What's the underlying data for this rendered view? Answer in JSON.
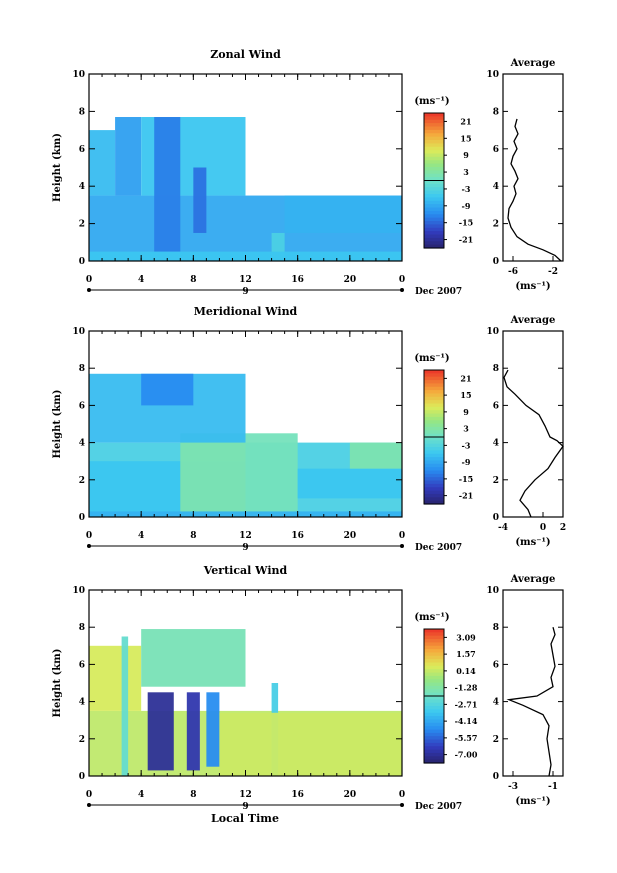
{
  "figure": {
    "local_time_label": "Local Time",
    "date_label": "Dec 2007",
    "day_label": "9"
  },
  "chart_data": [
    {
      "type": "heatmap",
      "title": "Zonal Wind",
      "ylabel": "Height (km)",
      "xlabel": "Local Time",
      "xlim": [
        0,
        24
      ],
      "ylim": [
        0,
        10
      ],
      "xticks": [
        "0",
        "4",
        "8",
        "12",
        "16",
        "20",
        "0"
      ],
      "yticks": [
        "0",
        "2",
        "4",
        "6",
        "8",
        "10"
      ],
      "colorbar": {
        "unit": "(ms⁻¹)",
        "ticks": [
          "21",
          "15",
          "9",
          "3",
          "-3",
          "-9",
          "-15",
          "-21"
        ],
        "range": [
          -24,
          24
        ]
      },
      "cells": [
        {
          "x0": 0,
          "x1": 24,
          "y0": 0,
          "y1": 3.5,
          "v": -9
        },
        {
          "x0": 0,
          "x1": 2,
          "y0": 3.5,
          "y1": 7,
          "v": -7
        },
        {
          "x0": 2,
          "x1": 4,
          "y0": 3.5,
          "y1": 7.7,
          "v": -10
        },
        {
          "x0": 4,
          "x1": 12,
          "y0": 3.5,
          "y1": 7.7,
          "v": -6
        },
        {
          "x0": 5,
          "x1": 7,
          "y0": 0.5,
          "y1": 7.7,
          "v": -13
        },
        {
          "x0": 8,
          "x1": 9,
          "y0": 1.5,
          "y1": 5,
          "v": -14
        },
        {
          "x0": 14,
          "x1": 15,
          "y0": 0,
          "y1": 1.5,
          "v": -4
        },
        {
          "x0": 15,
          "x1": 24,
          "y0": 1.5,
          "y1": 3.5,
          "v": -8
        },
        {
          "x0": 0,
          "x1": 24,
          "y0": 0,
          "y1": 0.5,
          "v": -6
        }
      ],
      "average": {
        "title": "Average",
        "xlabel": "(ms⁻¹)",
        "xlim": [
          -7,
          -1
        ],
        "xticks": [
          "-6",
          "-2"
        ],
        "yticks": [
          "0",
          "2",
          "4",
          "6",
          "8",
          "10"
        ],
        "points": [
          [
            -1.2,
            0
          ],
          [
            -1.8,
            0.3
          ],
          [
            -3.0,
            0.6
          ],
          [
            -4.5,
            0.9
          ],
          [
            -5.6,
            1.3
          ],
          [
            -6.2,
            1.8
          ],
          [
            -6.5,
            2.3
          ],
          [
            -6.4,
            2.8
          ],
          [
            -6.0,
            3.2
          ],
          [
            -5.7,
            3.6
          ],
          [
            -5.9,
            4.0
          ],
          [
            -5.5,
            4.4
          ],
          [
            -5.8,
            4.8
          ],
          [
            -6.2,
            5.2
          ],
          [
            -6.0,
            5.6
          ],
          [
            -5.6,
            6.0
          ],
          [
            -5.9,
            6.4
          ],
          [
            -5.5,
            6.8
          ],
          [
            -5.8,
            7.2
          ],
          [
            -5.6,
            7.6
          ]
        ]
      }
    },
    {
      "type": "heatmap",
      "title": "Meridional Wind",
      "ylabel": "Height (km)",
      "xlabel": "Local Time",
      "xlim": [
        0,
        24
      ],
      "ylim": [
        0,
        10
      ],
      "xticks": [
        "0",
        "4",
        "8",
        "12",
        "16",
        "20",
        "0"
      ],
      "yticks": [
        "0",
        "2",
        "4",
        "6",
        "8",
        "10"
      ],
      "colorbar": {
        "unit": "(ms⁻¹)",
        "ticks": [
          "21",
          "15",
          "9",
          "3",
          "-3",
          "-9",
          "-15",
          "-21"
        ],
        "range": [
          -24,
          24
        ]
      },
      "cells": [
        {
          "x0": 0,
          "x1": 24,
          "y0": 0,
          "y1": 4,
          "v": -4
        },
        {
          "x0": 0,
          "x1": 12,
          "y0": 0,
          "y1": 3,
          "v": -6
        },
        {
          "x0": 7,
          "x1": 12,
          "y0": 0,
          "y1": 4.5,
          "v": 2
        },
        {
          "x0": 12,
          "x1": 16,
          "y0": 0,
          "y1": 4.5,
          "v": 1
        },
        {
          "x0": 16,
          "x1": 24,
          "y0": 1,
          "y1": 2.6,
          "v": -6
        },
        {
          "x0": 20,
          "x1": 24,
          "y0": 2.6,
          "y1": 4,
          "v": 2
        },
        {
          "x0": 0,
          "x1": 12,
          "y0": 4,
          "y1": 7.7,
          "v": -7
        },
        {
          "x0": 4,
          "x1": 8,
          "y0": 6,
          "y1": 7.7,
          "v": -12
        },
        {
          "x0": 0,
          "x1": 24,
          "y0": 0,
          "y1": 0.3,
          "v": -8
        }
      ],
      "average": {
        "title": "Average",
        "xlabel": "(ms⁻¹)",
        "xlim": [
          -4,
          2
        ],
        "xticks": [
          "-4",
          "0",
          "2"
        ],
        "yticks": [
          "0",
          "2",
          "4",
          "6",
          "8",
          "10"
        ],
        "points": [
          [
            -1.2,
            0
          ],
          [
            -1.5,
            0.4
          ],
          [
            -2.3,
            0.9
          ],
          [
            -1.8,
            1.4
          ],
          [
            -0.8,
            2.0
          ],
          [
            0.5,
            2.6
          ],
          [
            1.2,
            3.2
          ],
          [
            2.0,
            3.8
          ],
          [
            1.4,
            4.1
          ],
          [
            0.7,
            4.3
          ],
          [
            0.2,
            4.9
          ],
          [
            -0.4,
            5.5
          ],
          [
            -1.7,
            6.0
          ],
          [
            -2.8,
            6.6
          ],
          [
            -3.6,
            7.0
          ],
          [
            -3.9,
            7.5
          ],
          [
            -3.5,
            7.9
          ]
        ]
      }
    },
    {
      "type": "heatmap",
      "title": "Vertical Wind",
      "ylabel": "Height (km)",
      "xlabel": "Local Time",
      "xlim": [
        0,
        24
      ],
      "ylim": [
        0,
        10
      ],
      "xticks": [
        "0",
        "4",
        "8",
        "12",
        "16",
        "20",
        "0"
      ],
      "yticks": [
        "0",
        "2",
        "4",
        "6",
        "8",
        "10"
      ],
      "colorbar": {
        "unit": "(ms⁻¹)",
        "ticks": [
          "3.09",
          "1.57",
          "0.14",
          "-1.28",
          "-2.71",
          "-4.14",
          "-5.57",
          "-7.00"
        ],
        "range": [
          -7.7,
          3.8
        ]
      },
      "cells": [
        {
          "x0": 0,
          "x1": 24,
          "y0": 0,
          "y1": 3.5,
          "v": 0.1
        },
        {
          "x0": 0,
          "x1": 4,
          "y0": 3.5,
          "y1": 7,
          "v": 0.5
        },
        {
          "x0": 4,
          "x1": 12,
          "y0": 4.8,
          "y1": 7.9,
          "v": -1.6
        },
        {
          "x0": 4.5,
          "x1": 6.5,
          "y0": 0.3,
          "y1": 4.5,
          "v": -7.0
        },
        {
          "x0": 7.5,
          "x1": 8.5,
          "y0": 0.3,
          "y1": 4.5,
          "v": -6.6
        },
        {
          "x0": 9,
          "x1": 10,
          "y0": 0.5,
          "y1": 4.5,
          "v": -4.8
        },
        {
          "x0": 14,
          "x1": 14.5,
          "y0": 0,
          "y1": 5,
          "v": -3.0
        },
        {
          "x0": 10,
          "x1": 24,
          "y0": 0,
          "y1": 3.4,
          "v": 0.3
        },
        {
          "x0": 2.5,
          "x1": 3,
          "y0": 0,
          "y1": 7.5,
          "v": -2.2
        }
      ],
      "average": {
        "title": "Average",
        "xlabel": "(ms⁻¹)",
        "xlim": [
          -3.5,
          -0.5
        ],
        "xticks": [
          "-3",
          "-1"
        ],
        "yticks": [
          "0",
          "2",
          "4",
          "6",
          "8",
          "10"
        ],
        "points": [
          [
            -1.2,
            0
          ],
          [
            -1.1,
            0.6
          ],
          [
            -1.2,
            1.3
          ],
          [
            -1.3,
            2.0
          ],
          [
            -1.2,
            2.7
          ],
          [
            -1.5,
            3.3
          ],
          [
            -2.5,
            3.8
          ],
          [
            -3.2,
            4.1
          ],
          [
            -1.8,
            4.3
          ],
          [
            -1.0,
            4.8
          ],
          [
            -1.1,
            5.3
          ],
          [
            -0.9,
            5.9
          ],
          [
            -1.0,
            6.5
          ],
          [
            -1.1,
            7.1
          ],
          [
            -0.9,
            7.6
          ],
          [
            -1.0,
            8.0
          ]
        ]
      }
    }
  ]
}
